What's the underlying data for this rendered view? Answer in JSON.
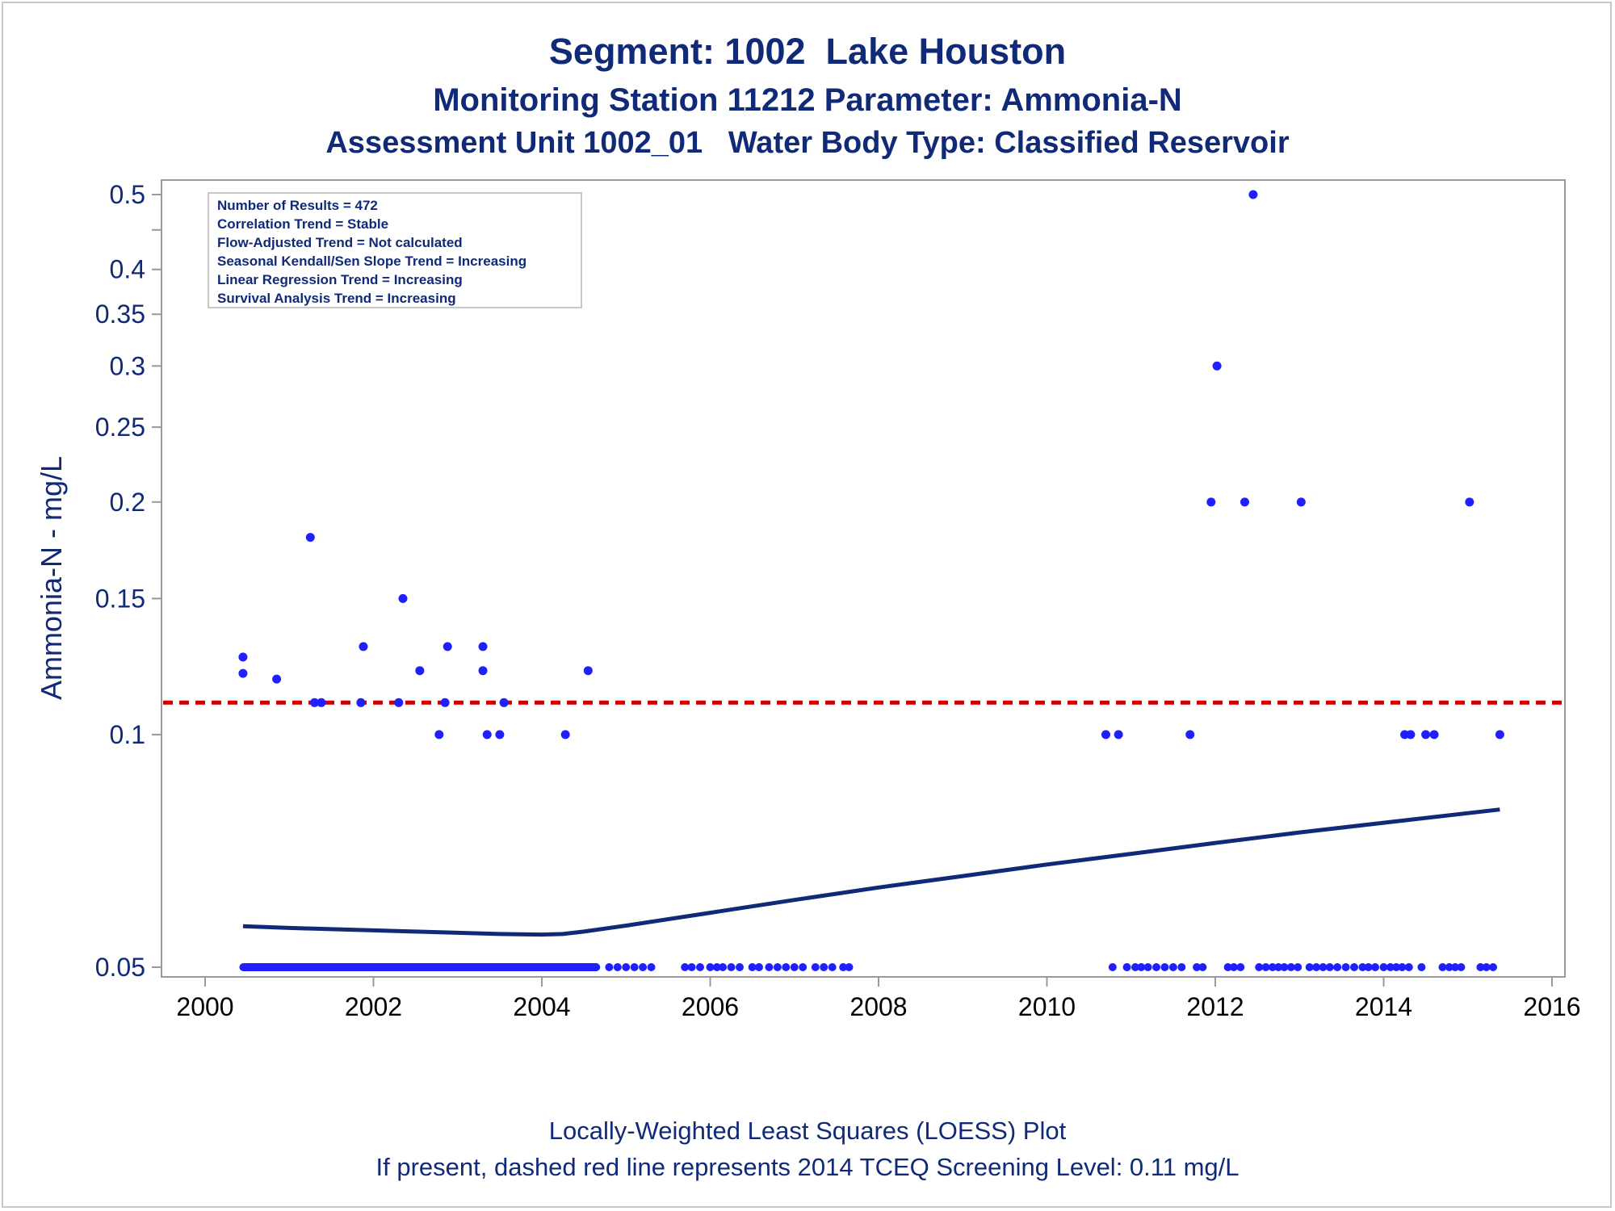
{
  "titles": {
    "line1": "Segment: 1002  Lake Houston",
    "line2": "Monitoring Station 11212 Parameter: Ammonia-N",
    "line3": "Assessment Unit 1002_01   Water Body Type: Classified Reservoir"
  },
  "footnotes": {
    "line1": "Locally-Weighted Least Squares (LOESS) Plot",
    "line2": "If present, dashed red line represents 2014 TCEQ Screening Level: 0.11 mg/L"
  },
  "colors": {
    "title_text": "#102a78",
    "points": "#1f1fff",
    "loess_line": "#102a78",
    "screening_line": "#cc0000",
    "axis": "#9a9a9a"
  },
  "chart_data": {
    "type": "scatter",
    "ylabel": "Ammonia-N - mg/L",
    "xlabel": "",
    "yscale": "log",
    "xlim": [
      2000,
      2016
    ],
    "ylim": [
      0.05,
      0.5
    ],
    "x_ticks": [
      2000,
      2002,
      2004,
      2006,
      2008,
      2010,
      2012,
      2014,
      2016
    ],
    "y_ticks": [
      0.05,
      0.1,
      0.15,
      0.2,
      0.25,
      0.3,
      0.35,
      0.4,
      0.5
    ],
    "y_minor_ticks": [
      0.45
    ],
    "grid": false,
    "inset_legend": {
      "placement": "top-left",
      "lines": [
        "Number of Results = 472",
        "Correlation Trend = Stable",
        "Flow-Adjusted Trend = Not calculated",
        "Seasonal Kendall/Sen Slope Trend = Increasing",
        "Linear Regression Trend = Increasing",
        "Survival Analysis Trend = Increasing"
      ]
    },
    "reference_line": {
      "y": 0.11,
      "style": "dashed",
      "color": "#cc0000"
    },
    "points": [
      [
        2000.45,
        0.126
      ],
      [
        2000.45,
        0.12
      ],
      [
        2000.85,
        0.118
      ],
      [
        2001.25,
        0.18
      ],
      [
        2001.3,
        0.11
      ],
      [
        2001.38,
        0.11
      ],
      [
        2001.85,
        0.11
      ],
      [
        2001.88,
        0.13
      ],
      [
        2002.3,
        0.11
      ],
      [
        2002.35,
        0.15
      ],
      [
        2002.55,
        0.121
      ],
      [
        2002.78,
        0.1
      ],
      [
        2002.85,
        0.11
      ],
      [
        2002.88,
        0.13
      ],
      [
        2003.3,
        0.13
      ],
      [
        2003.3,
        0.121
      ],
      [
        2003.35,
        0.1
      ],
      [
        2003.5,
        0.1
      ],
      [
        2003.55,
        0.11
      ],
      [
        2004.28,
        0.1
      ],
      [
        2004.55,
        0.121
      ],
      [
        2010.7,
        0.1
      ],
      [
        2010.85,
        0.1
      ],
      [
        2011.7,
        0.1
      ],
      [
        2011.95,
        0.2
      ],
      [
        2012.02,
        0.3
      ],
      [
        2012.35,
        0.2
      ],
      [
        2012.45,
        0.5
      ],
      [
        2013.02,
        0.2
      ],
      [
        2014.25,
        0.1
      ],
      [
        2014.32,
        0.1
      ],
      [
        2014.5,
        0.1
      ],
      [
        2014.6,
        0.1
      ],
      [
        2015.02,
        0.2
      ],
      [
        2015.38,
        0.1
      ]
    ],
    "baseline_points": {
      "y": 0.05,
      "dense_range": [
        2000.45,
        2004.65
      ],
      "x": [
        2004.8,
        2004.9,
        2005.0,
        2005.1,
        2005.2,
        2005.3,
        2005.7,
        2005.78,
        2005.88,
        2006.0,
        2006.08,
        2006.15,
        2006.25,
        2006.35,
        2006.5,
        2006.58,
        2006.7,
        2006.8,
        2006.9,
        2007.0,
        2007.1,
        2007.25,
        2007.35,
        2007.45,
        2007.58,
        2007.65,
        2010.78,
        2010.95,
        2011.05,
        2011.12,
        2011.2,
        2011.3,
        2011.4,
        2011.5,
        2011.6,
        2011.78,
        2011.85,
        2012.15,
        2012.22,
        2012.3,
        2012.52,
        2012.6,
        2012.68,
        2012.75,
        2012.82,
        2012.9,
        2012.98,
        2013.12,
        2013.2,
        2013.28,
        2013.36,
        2013.45,
        2013.55,
        2013.65,
        2013.75,
        2013.82,
        2013.9,
        2014.0,
        2014.08,
        2014.15,
        2014.22,
        2014.3,
        2014.45,
        2014.7,
        2014.78,
        2014.85,
        2014.92,
        2015.15,
        2015.22,
        2015.3
      ]
    },
    "loess": [
      [
        2000.45,
        0.0565
      ],
      [
        2001.0,
        0.0562
      ],
      [
        2001.5,
        0.056
      ],
      [
        2002.0,
        0.0558
      ],
      [
        2002.5,
        0.0556
      ],
      [
        2003.0,
        0.0554
      ],
      [
        2003.5,
        0.0552
      ],
      [
        2004.0,
        0.0551
      ],
      [
        2004.25,
        0.0552
      ],
      [
        2004.5,
        0.0556
      ],
      [
        2005.0,
        0.0566
      ],
      [
        2006.0,
        0.0588
      ],
      [
        2007.0,
        0.0611
      ],
      [
        2008.0,
        0.0634
      ],
      [
        2009.0,
        0.0656
      ],
      [
        2010.0,
        0.0679
      ],
      [
        2011.0,
        0.0701
      ],
      [
        2012.0,
        0.0724
      ],
      [
        2013.0,
        0.0747
      ],
      [
        2014.0,
        0.0769
      ],
      [
        2015.38,
        0.08
      ]
    ]
  }
}
